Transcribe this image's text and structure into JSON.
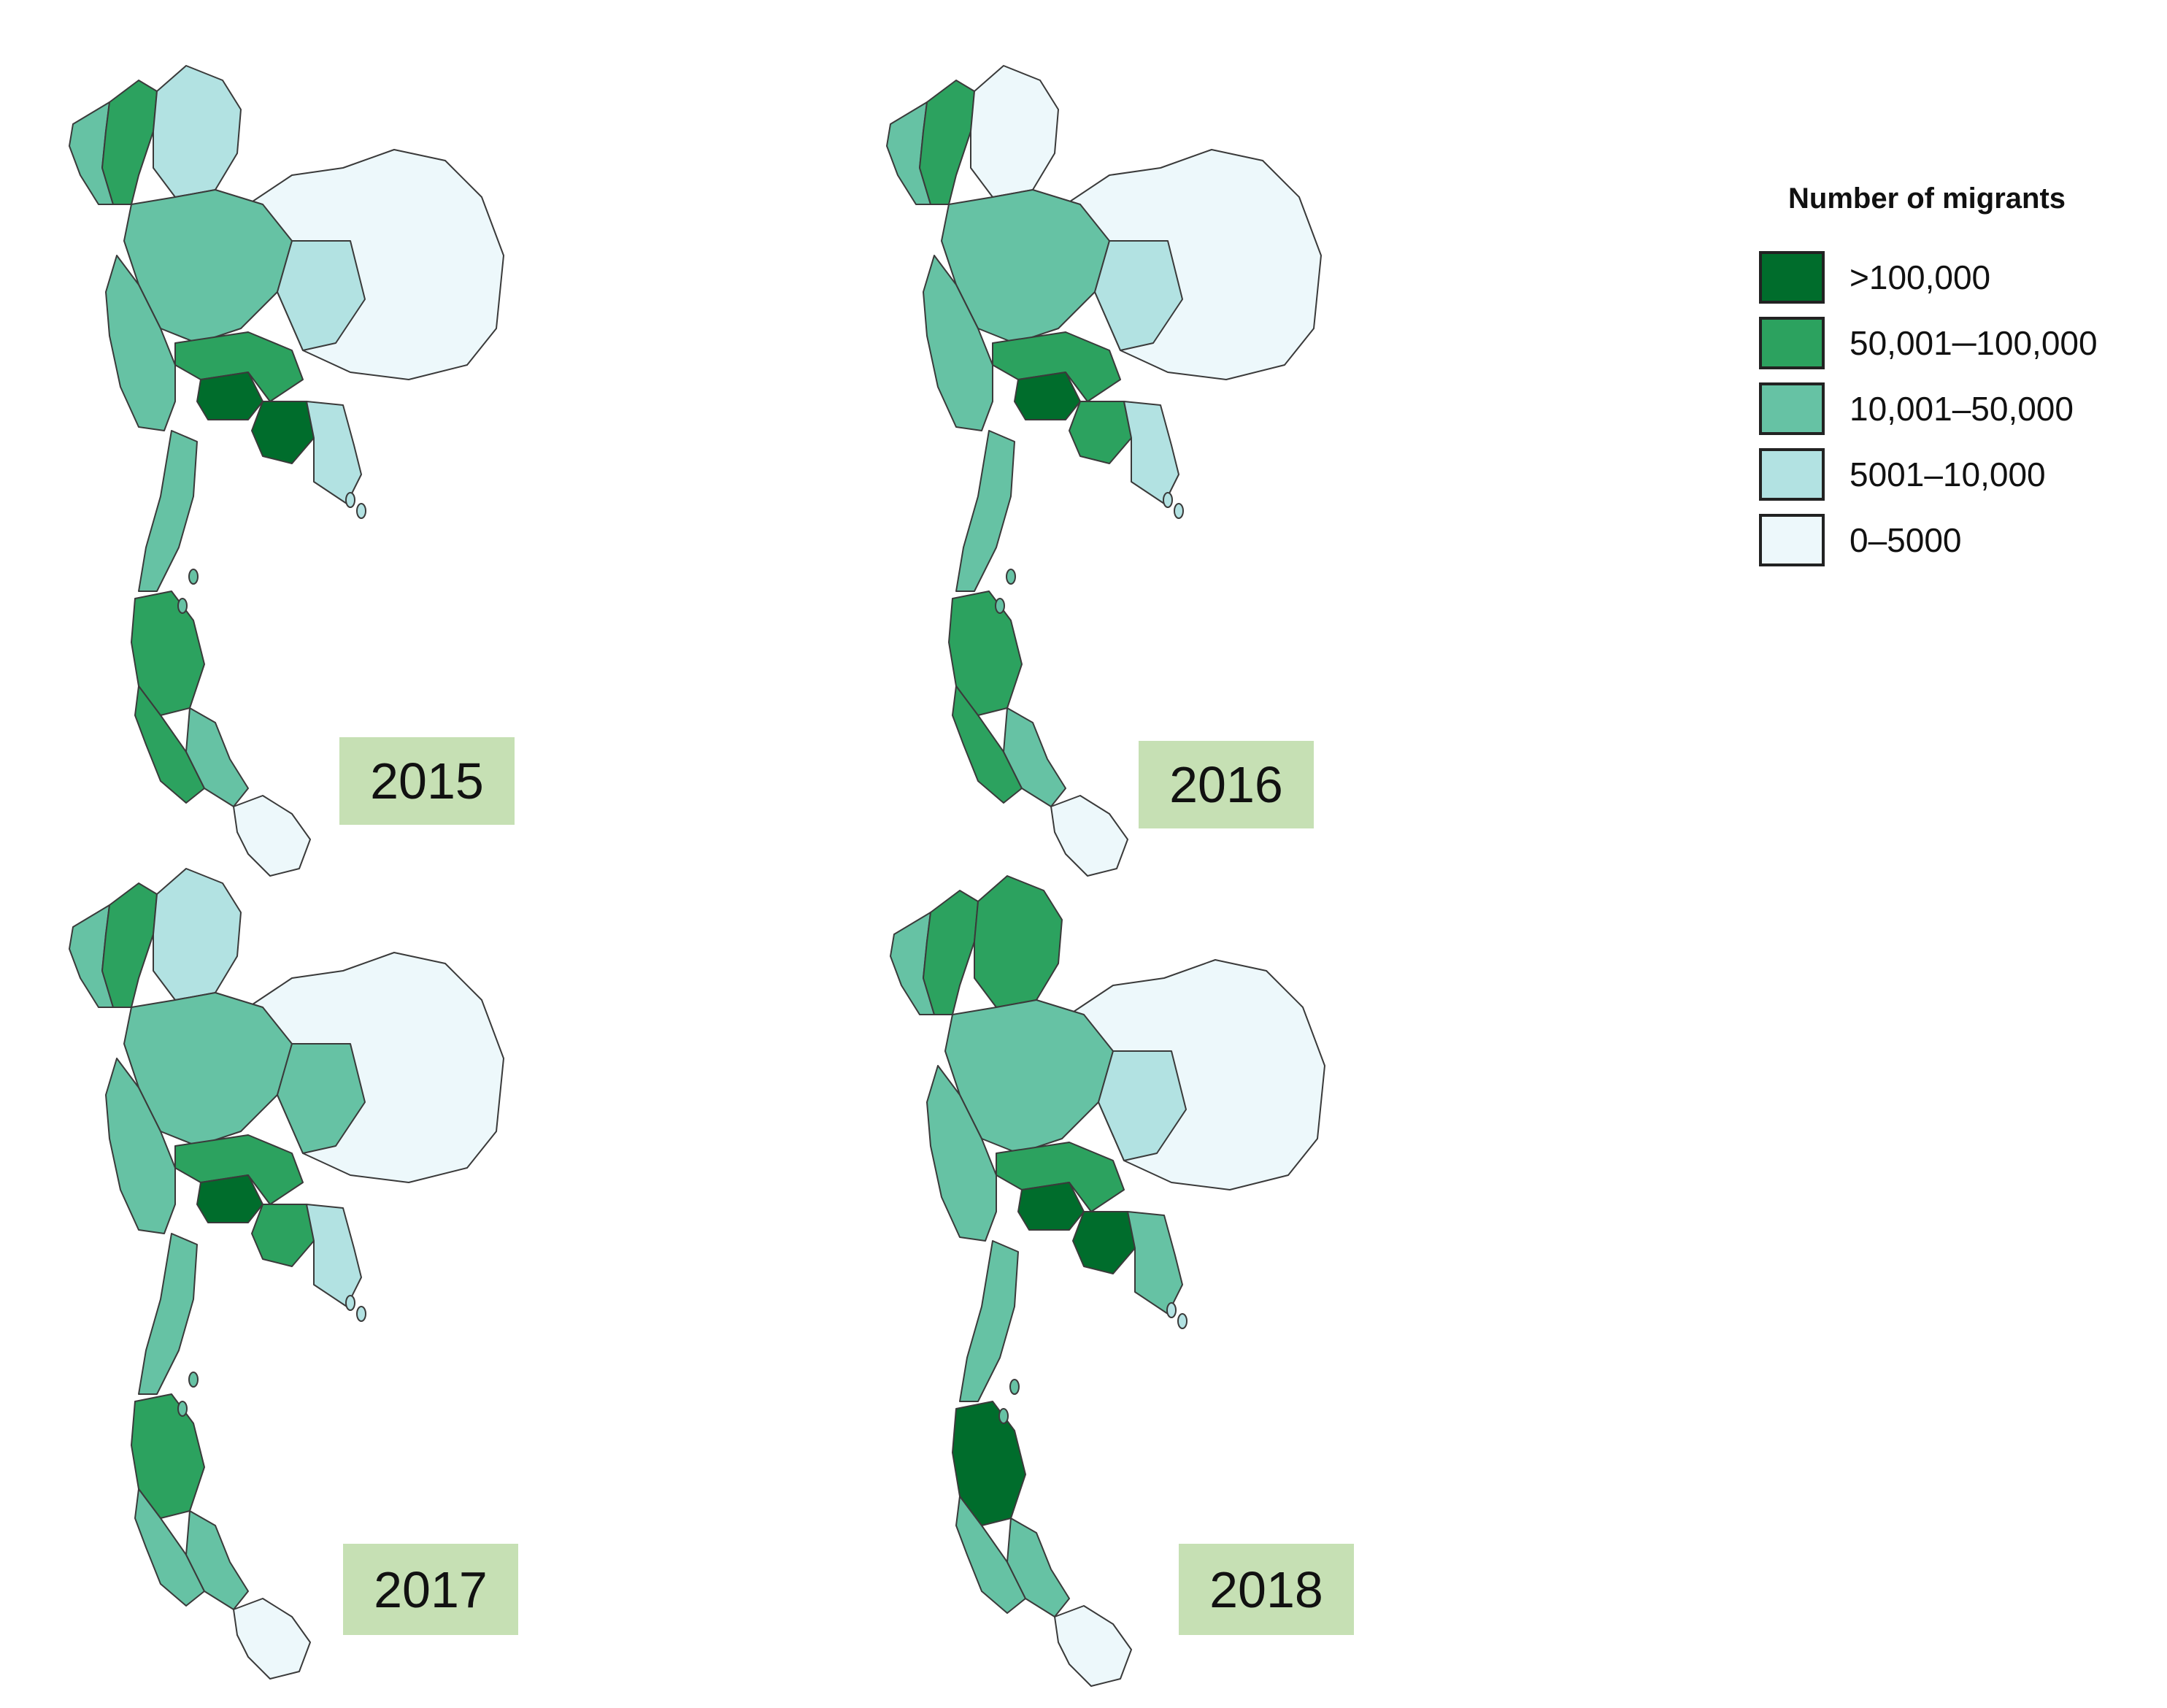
{
  "legend": {
    "title": "Number of migrants",
    "classes": [
      {
        "label": ">100,000",
        "color": "#006d2c"
      },
      {
        "label": "50,001─100,000",
        "color": "#2ca25f"
      },
      {
        "label": "10,001‒50,000",
        "color": "#66c2a4"
      },
      {
        "label": "5001‒10,000",
        "color": "#b2e2e2"
      },
      {
        "label": "0‒5000",
        "color": "#edf8fb"
      }
    ]
  },
  "maps": [
    {
      "year": "2015",
      "classes": {
        "north_west": 1,
        "north_strip": 2,
        "north_center": 3,
        "upper_central": 2,
        "west": 2,
        "bangkok": 0,
        "bangkok_ring": 1,
        "east": 0,
        "east_coast": 3,
        "northeast": 4,
        "northeast_west": 3,
        "south_upper": 2,
        "south_central": 1,
        "south_lower": 2,
        "south_tip": 1,
        "deep_south": 4
      }
    },
    {
      "year": "2016",
      "classes": {
        "north_west": 1,
        "north_strip": 2,
        "north_center": 4,
        "upper_central": 2,
        "west": 2,
        "bangkok": 0,
        "bangkok_ring": 1,
        "east": 1,
        "east_coast": 3,
        "northeast": 4,
        "northeast_west": 3,
        "south_upper": 2,
        "south_central": 1,
        "south_lower": 2,
        "south_tip": 1,
        "deep_south": 4
      }
    },
    {
      "year": "2017",
      "classes": {
        "north_west": 1,
        "north_strip": 2,
        "north_center": 3,
        "upper_central": 2,
        "west": 2,
        "bangkok": 0,
        "bangkok_ring": 1,
        "east": 1,
        "east_coast": 3,
        "northeast": 4,
        "northeast_west": 2,
        "south_upper": 2,
        "south_central": 1,
        "south_lower": 2,
        "south_tip": 2,
        "deep_south": 4
      }
    },
    {
      "year": "2018",
      "classes": {
        "north_west": 1,
        "north_strip": 2,
        "north_center": 1,
        "upper_central": 2,
        "west": 2,
        "bangkok": 0,
        "bangkok_ring": 1,
        "east": 0,
        "east_coast": 2,
        "northeast": 4,
        "northeast_west": 3,
        "south_upper": 2,
        "south_central": 0,
        "south_lower": 2,
        "south_tip": 2,
        "deep_south": 4
      }
    }
  ]
}
